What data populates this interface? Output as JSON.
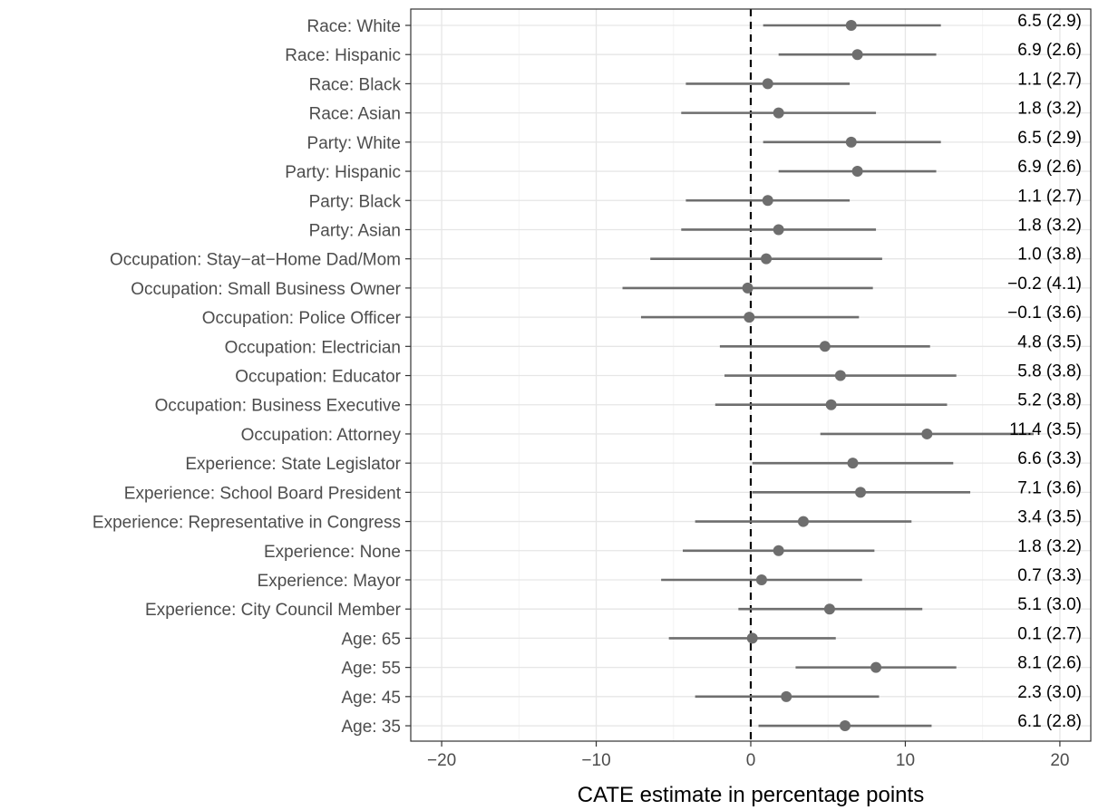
{
  "chart_data": {
    "type": "scatter",
    "xlabel": "CATE estimate in percentage points",
    "ylabel": "",
    "xlim": [
      -22,
      22
    ],
    "x_ticks": [
      -20,
      -10,
      0,
      10,
      20
    ],
    "x_tick_labels": [
      "−20",
      "−10",
      "0",
      "10",
      "20"
    ],
    "reference_line_x": 0,
    "grid": true,
    "rows": [
      {
        "label": "Race: White",
        "estimate": 6.5,
        "se": 2.9,
        "lo": 0.8,
        "hi": 12.3,
        "text": "6.5 (2.9)"
      },
      {
        "label": "Race: Hispanic",
        "estimate": 6.9,
        "se": 2.6,
        "lo": 1.8,
        "hi": 12.0,
        "text": "6.9 (2.6)"
      },
      {
        "label": "Race: Black",
        "estimate": 1.1,
        "se": 2.7,
        "lo": -4.2,
        "hi": 6.4,
        "text": "1.1 (2.7)"
      },
      {
        "label": "Race: Asian",
        "estimate": 1.8,
        "se": 3.2,
        "lo": -4.5,
        "hi": 8.1,
        "text": "1.8 (3.2)"
      },
      {
        "label": "Party: White",
        "estimate": 6.5,
        "se": 2.9,
        "lo": 0.8,
        "hi": 12.3,
        "text": "6.5 (2.9)"
      },
      {
        "label": "Party: Hispanic",
        "estimate": 6.9,
        "se": 2.6,
        "lo": 1.8,
        "hi": 12.0,
        "text": "6.9 (2.6)"
      },
      {
        "label": "Party: Black",
        "estimate": 1.1,
        "se": 2.7,
        "lo": -4.2,
        "hi": 6.4,
        "text": "1.1 (2.7)"
      },
      {
        "label": "Party: Asian",
        "estimate": 1.8,
        "se": 3.2,
        "lo": -4.5,
        "hi": 8.1,
        "text": "1.8 (3.2)"
      },
      {
        "label": "Occupation: Stay−at−Home Dad/Mom",
        "estimate": 1.0,
        "se": 3.8,
        "lo": -6.5,
        "hi": 8.5,
        "text": "1.0 (3.8)"
      },
      {
        "label": "Occupation: Small Business Owner",
        "estimate": -0.2,
        "se": 4.1,
        "lo": -8.3,
        "hi": 7.9,
        "text": "−0.2 (4.1)"
      },
      {
        "label": "Occupation: Police Officer",
        "estimate": -0.1,
        "se": 3.6,
        "lo": -7.1,
        "hi": 7.0,
        "text": "−0.1 (3.6)"
      },
      {
        "label": "Occupation: Electrician",
        "estimate": 4.8,
        "se": 3.5,
        "lo": -2.0,
        "hi": 11.6,
        "text": "4.8 (3.5)"
      },
      {
        "label": "Occupation: Educator",
        "estimate": 5.8,
        "se": 3.8,
        "lo": -1.7,
        "hi": 13.3,
        "text": "5.8 (3.8)"
      },
      {
        "label": "Occupation: Business Executive",
        "estimate": 5.2,
        "se": 3.8,
        "lo": -2.3,
        "hi": 12.7,
        "text": "5.2 (3.8)"
      },
      {
        "label": "Occupation: Attorney",
        "estimate": 11.4,
        "se": 3.5,
        "lo": 4.5,
        "hi": 18.3,
        "text": "11.4 (3.5)"
      },
      {
        "label": "Experience: State Legislator",
        "estimate": 6.6,
        "se": 3.3,
        "lo": 0.1,
        "hi": 13.1,
        "text": "6.6 (3.3)"
      },
      {
        "label": "Experience: School Board President",
        "estimate": 7.1,
        "se": 3.6,
        "lo": 0.1,
        "hi": 14.2,
        "text": "7.1 (3.6)"
      },
      {
        "label": "Experience: Representative in Congress",
        "estimate": 3.4,
        "se": 3.5,
        "lo": -3.6,
        "hi": 10.4,
        "text": "3.4 (3.5)"
      },
      {
        "label": "Experience: None",
        "estimate": 1.8,
        "se": 3.2,
        "lo": -4.4,
        "hi": 8.0,
        "text": "1.8 (3.2)"
      },
      {
        "label": "Experience: Mayor",
        "estimate": 0.7,
        "se": 3.3,
        "lo": -5.8,
        "hi": 7.2,
        "text": "0.7 (3.3)"
      },
      {
        "label": "Experience: City Council Member",
        "estimate": 5.1,
        "se": 3.0,
        "lo": -0.8,
        "hi": 11.1,
        "text": "5.1 (3.0)"
      },
      {
        "label": "Age: 65",
        "estimate": 0.1,
        "se": 2.7,
        "lo": -5.3,
        "hi": 5.5,
        "text": "0.1 (2.7)"
      },
      {
        "label": "Age: 55",
        "estimate": 8.1,
        "se": 2.6,
        "lo": 2.9,
        "hi": 13.3,
        "text": "8.1 (2.6)"
      },
      {
        "label": "Age: 45",
        "estimate": 2.3,
        "se": 3.0,
        "lo": -3.6,
        "hi": 8.3,
        "text": "2.3 (3.0)"
      },
      {
        "label": "Age: 35",
        "estimate": 6.1,
        "se": 2.8,
        "lo": 0.5,
        "hi": 11.7,
        "text": "6.1 (2.8)"
      }
    ],
    "colors": {
      "estimate": "#6e6e6e",
      "reference_line": "#000000",
      "grid": "#e6e6e6",
      "axis_text": "#4d4d4d"
    }
  }
}
